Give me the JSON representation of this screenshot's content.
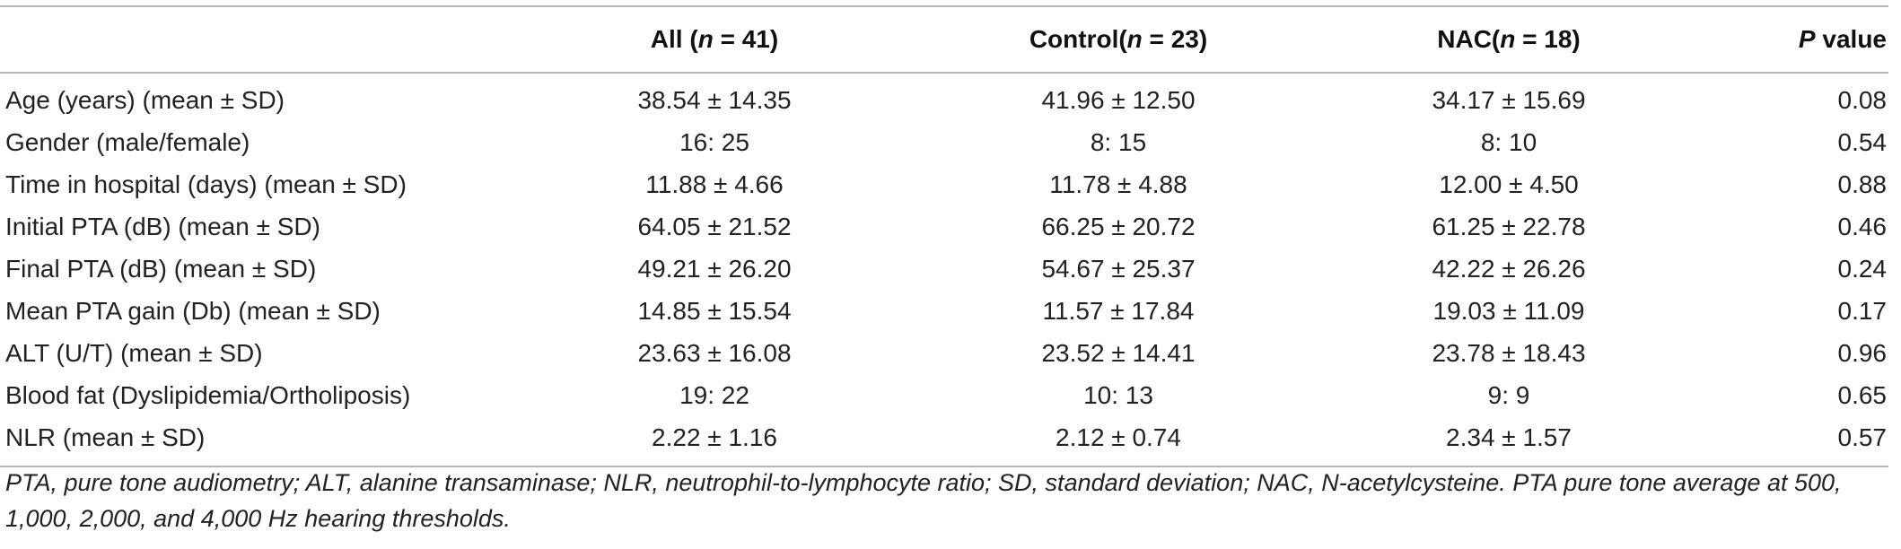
{
  "table": {
    "headers": {
      "label": "",
      "all": {
        "prefix": "All (",
        "n": "n",
        "rest": " = 41)"
      },
      "control": {
        "prefix": "Control(",
        "n": "n",
        "rest": " = 23)"
      },
      "nac": {
        "prefix": "NAC(",
        "n": "n",
        "rest": " = 18)"
      },
      "p": {
        "italic": "P",
        "rest": " value"
      }
    },
    "rows": [
      {
        "label": "Age (years) (mean ± SD)",
        "all": "38.54 ± 14.35",
        "control": "41.96 ± 12.50",
        "nac": "34.17 ± 15.69",
        "p": "0.08"
      },
      {
        "label": "Gender (male/female)",
        "all": "16: 25",
        "control": "8: 15",
        "nac": "8: 10",
        "p": "0.54"
      },
      {
        "label": "Time in hospital (days) (mean ± SD)",
        "all": "11.88 ± 4.66",
        "control": "11.78 ± 4.88",
        "nac": "12.00 ± 4.50",
        "p": "0.88"
      },
      {
        "label": "Initial PTA (dB) (mean ± SD)",
        "all": "64.05 ± 21.52",
        "control": "66.25 ± 20.72",
        "nac": "61.25 ± 22.78",
        "p": "0.46"
      },
      {
        "label": "Final PTA (dB) (mean ± SD)",
        "all": "49.21 ± 26.20",
        "control": "54.67 ± 25.37",
        "nac": "42.22 ± 26.26",
        "p": "0.24"
      },
      {
        "label": "Mean PTA gain (Db) (mean ± SD)",
        "all": "14.85 ± 15.54",
        "control": "11.57 ± 17.84",
        "nac": "19.03 ± 11.09",
        "p": "0.17"
      },
      {
        "label": "ALT (U/T) (mean ± SD)",
        "all": "23.63 ± 16.08",
        "control": "23.52 ± 14.41",
        "nac": "23.78 ± 18.43",
        "p": "0.96"
      },
      {
        "label": "Blood fat (Dyslipidemia/Ortholiposis)",
        "all": "19: 22",
        "control": "10: 13",
        "nac": "9: 9",
        "p": "0.65"
      },
      {
        "label": "NLR (mean ± SD)",
        "all": "2.22 ± 1.16",
        "control": "2.12 ± 0.74",
        "nac": "2.34 ± 1.57",
        "p": "0.57"
      }
    ]
  },
  "footnote": "PTA, pure tone audiometry; ALT, alanine transaminase; NLR, neutrophil-to-lymphocyte ratio; SD, standard deviation; NAC, N-acetylcysteine. PTA pure tone average at 500, 1,000, 2,000, and 4,000 Hz hearing thresholds."
}
